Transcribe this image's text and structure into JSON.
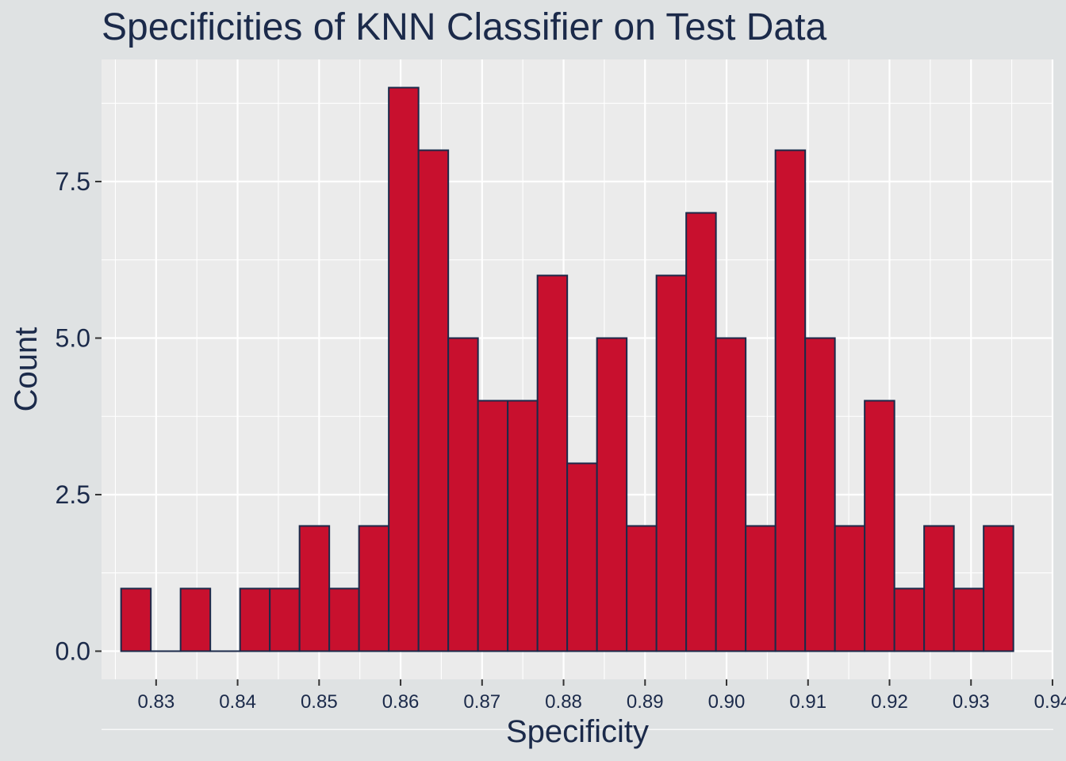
{
  "chart_data": {
    "type": "bar",
    "title": "Specificities of KNN Classifier on Test Data",
    "xlabel": "Specificity",
    "ylabel": "Count",
    "bin_width": 0.00365,
    "first_bin_start": 0.8257,
    "values": [
      1,
      0,
      1,
      0,
      1,
      1,
      2,
      1,
      2,
      9,
      8,
      5,
      4,
      4,
      6,
      3,
      5,
      2,
      6,
      7,
      5,
      2,
      8,
      5,
      2,
      4,
      1,
      2,
      1,
      2
    ],
    "x_ticks": [
      "0.83",
      "0.84",
      "0.85",
      "0.86",
      "0.87",
      "0.88",
      "0.89",
      "0.90",
      "0.91",
      "0.92",
      "0.93",
      "0.94"
    ],
    "y_ticks": [
      "0.0",
      "2.5",
      "5.0",
      "7.5"
    ],
    "xlim": [
      0.8233,
      0.9401
    ],
    "ylim": [
      -0.45,
      9.45
    ],
    "colors": {
      "bar_fill": "#c8102e",
      "bar_edge": "#1b2a4a",
      "panel": "#ebebeb",
      "background": "#dfe2e3",
      "text": "#1b2a4a"
    }
  }
}
